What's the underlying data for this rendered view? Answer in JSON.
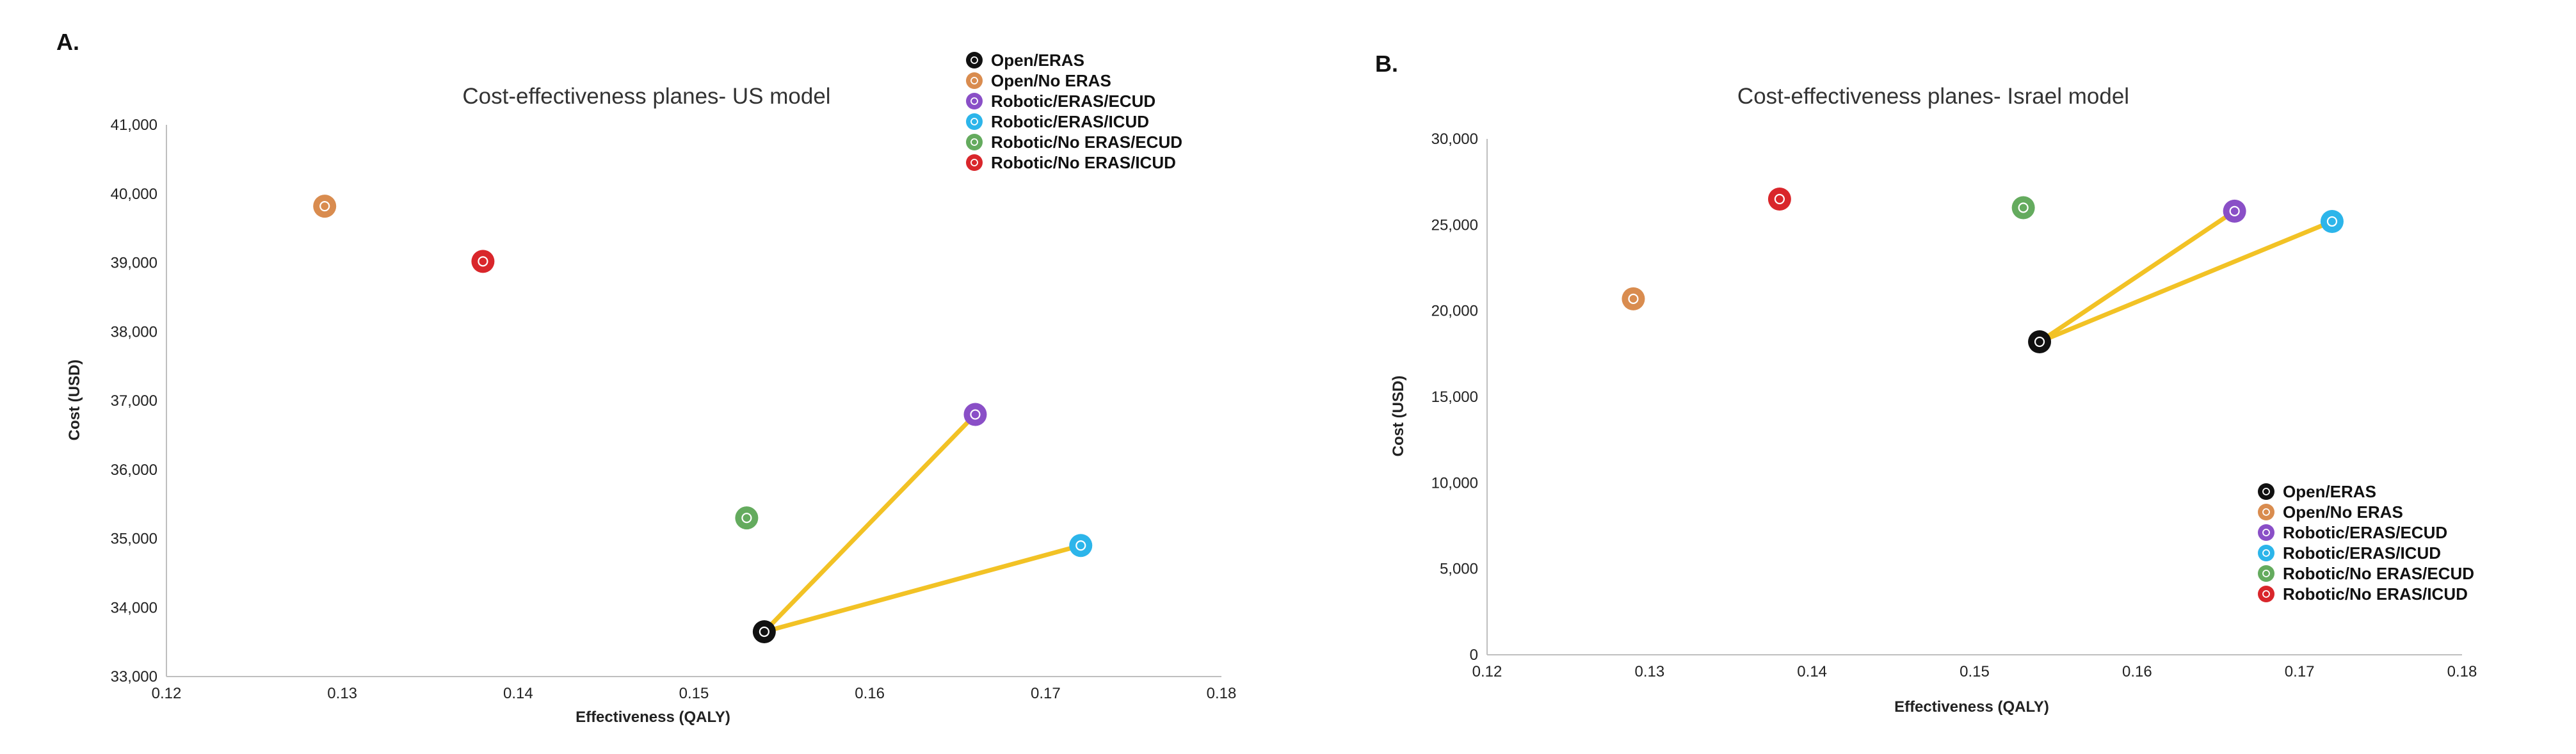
{
  "panels": {
    "a": "A.",
    "b": "B."
  },
  "colors": {
    "Open/ERAS": "#111111",
    "Open/No ERAS": "#d98c4f",
    "Robotic/ERAS/ECUD": "#8a4fc7",
    "Robotic/ERAS/ICUD": "#2cb5ea",
    "Robotic/No ERAS/ECUD": "#64ab5e",
    "Robotic/No ERAS/ICUD": "#d9262b",
    "connector": "#f2c225"
  },
  "chart_data": [
    {
      "type": "scatter",
      "title": "Cost-effectiveness planes- US model",
      "xlabel": "Effectiveness (QALY)",
      "ylabel": "Cost (USD)",
      "xlim": [
        0.12,
        0.18
      ],
      "ylim": [
        33000,
        41000
      ],
      "xticks": [
        0.12,
        0.13,
        0.14,
        0.15,
        0.16,
        0.17,
        0.18
      ],
      "xtick_labels": [
        "0.12",
        "0.13",
        "0.14",
        "0.15",
        "0.16",
        "0.17",
        "0.18"
      ],
      "yticks": [
        33000,
        34000,
        35000,
        36000,
        37000,
        38000,
        39000,
        40000,
        41000
      ],
      "ytick_labels": [
        "33,000",
        "34,000",
        "35,000",
        "36,000",
        "37,000",
        "38,000",
        "39,000",
        "40,000",
        "41,000"
      ],
      "legend_position": "top-right",
      "points": [
        {
          "name": "Open/ERAS",
          "x": 0.154,
          "y": 33650
        },
        {
          "name": "Open/No ERAS",
          "x": 0.129,
          "y": 39820
        },
        {
          "name": "Robotic/ERAS/ECUD",
          "x": 0.166,
          "y": 36800
        },
        {
          "name": "Robotic/ERAS/ICUD",
          "x": 0.172,
          "y": 34900
        },
        {
          "name": "Robotic/No ERAS/ECUD",
          "x": 0.153,
          "y": 35300
        },
        {
          "name": "Robotic/No ERAS/ICUD",
          "x": 0.138,
          "y": 39020
        }
      ],
      "connectors": [
        {
          "from": "Open/ERAS",
          "to": "Robotic/ERAS/ECUD"
        },
        {
          "from": "Open/ERAS",
          "to": "Robotic/ERAS/ICUD"
        }
      ]
    },
    {
      "type": "scatter",
      "title": "Cost-effectiveness planes- Israel model",
      "xlabel": "Effectiveness (QALY)",
      "ylabel": "Cost (USD)",
      "xlim": [
        0.12,
        0.18
      ],
      "ylim": [
        0,
        30000
      ],
      "xticks": [
        0.12,
        0.13,
        0.14,
        0.15,
        0.16,
        0.17,
        0.18
      ],
      "xtick_labels": [
        "0.12",
        "0.13",
        "0.14",
        "0.15",
        "0.16",
        "0.17",
        "0.18"
      ],
      "yticks": [
        0,
        5000,
        10000,
        15000,
        20000,
        25000,
        30000
      ],
      "ytick_labels": [
        "0",
        "5,000",
        "10,000",
        "15,000",
        "20,000",
        "25,000",
        "30,000"
      ],
      "legend_position": "bottom-right",
      "points": [
        {
          "name": "Open/ERAS",
          "x": 0.154,
          "y": 18200
        },
        {
          "name": "Open/No ERAS",
          "x": 0.129,
          "y": 20700
        },
        {
          "name": "Robotic/ERAS/ECUD",
          "x": 0.166,
          "y": 25800
        },
        {
          "name": "Robotic/ERAS/ICUD",
          "x": 0.172,
          "y": 25200
        },
        {
          "name": "Robotic/No ERAS/ECUD",
          "x": 0.153,
          "y": 26000
        },
        {
          "name": "Robotic/No ERAS/ICUD",
          "x": 0.138,
          "y": 26500
        }
      ],
      "connectors": [
        {
          "from": "Open/ERAS",
          "to": "Robotic/ERAS/ECUD"
        },
        {
          "from": "Open/ERAS",
          "to": "Robotic/ERAS/ICUD"
        }
      ]
    }
  ]
}
